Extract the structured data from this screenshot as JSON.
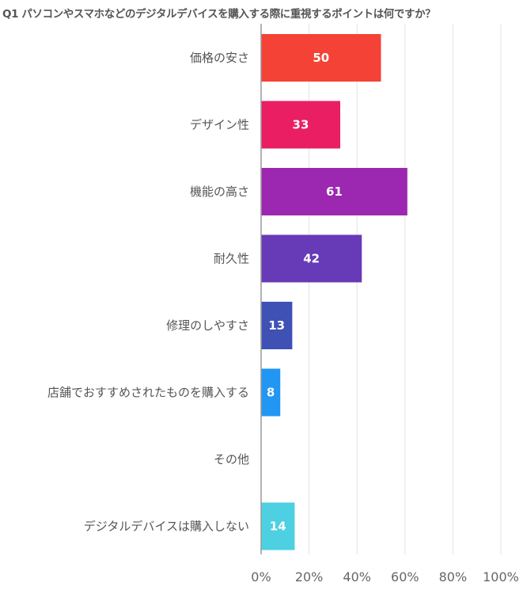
{
  "chart_data": {
    "type": "bar",
    "orientation": "horizontal",
    "title": "Q1 パソコンやスマホなどのデジタルデバイスを購入する際に重視するポイントは何ですか？",
    "categories": [
      "価格の安さ",
      "デザイン性",
      "機能の高さ",
      "耐久性",
      "修理のしやすさ",
      "店舗でおすすめされたものを購入する",
      "その他",
      "デジタルデバイスは購入しない"
    ],
    "values": [
      50,
      33,
      61,
      42,
      13,
      8,
      0,
      14
    ],
    "value_labels": [
      "50",
      "33",
      "61",
      "42",
      "13",
      "8",
      "",
      "14"
    ],
    "colors": [
      "#f44336",
      "#e91e63",
      "#9c27b0",
      "#673ab7",
      "#3f51b5",
      "#2196f3",
      "#03a9f4",
      "#4dd0e1"
    ],
    "xlim": [
      0,
      100
    ],
    "xticks": [
      0,
      20,
      40,
      60,
      80,
      100
    ],
    "xtick_labels": [
      "0%",
      "20%",
      "40%",
      "60%",
      "80%",
      "100%"
    ],
    "grid": true,
    "xlabel": "",
    "ylabel": ""
  }
}
